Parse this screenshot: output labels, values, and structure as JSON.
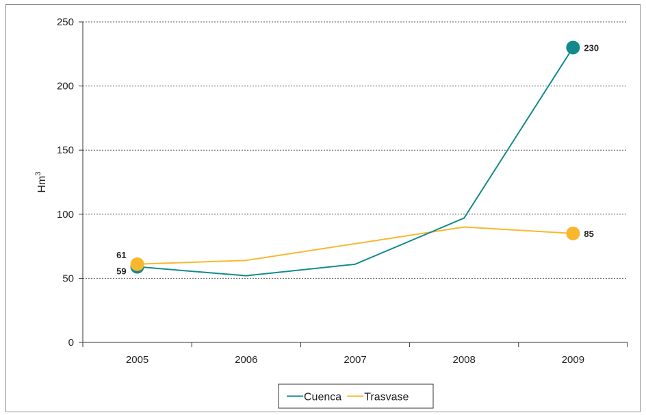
{
  "chart_data": {
    "type": "line",
    "title": "",
    "xlabel": "",
    "ylabel": "Hm",
    "ylabel_superscript": "3",
    "categories": [
      "2005",
      "2006",
      "2007",
      "2008",
      "2009"
    ],
    "ylim": [
      0,
      250
    ],
    "yticks": [
      "0",
      "50",
      "100",
      "150",
      "200",
      "250"
    ],
    "grid": "horizontal-dotted",
    "legend_position": "bottom",
    "series": [
      {
        "name": "Cuenca",
        "color": "#13898b",
        "values": [
          59,
          52,
          61,
          97,
          230
        ],
        "labels": [
          {
            "index": 0,
            "text": "59"
          },
          {
            "index": 4,
            "text": "230"
          }
        ]
      },
      {
        "name": "Trasvase",
        "color": "#f9b72e",
        "values": [
          61,
          64,
          77,
          90,
          85
        ],
        "labels": [
          {
            "index": 0,
            "text": "61"
          },
          {
            "index": 4,
            "text": "85"
          }
        ]
      }
    ]
  }
}
